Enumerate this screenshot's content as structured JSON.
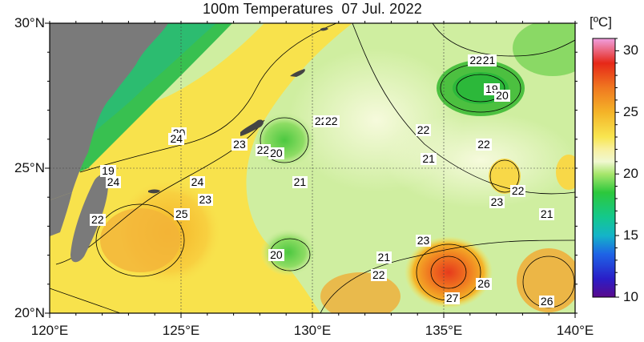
{
  "title": {
    "depth": "100m Temperatures",
    "date": "07 Jul. 2022"
  },
  "axes": {
    "lat_labels": [
      {
        "text": "30°N",
        "lat": 30
      },
      {
        "text": "25°N",
        "lat": 25
      },
      {
        "text": "20°N",
        "lat": 20
      }
    ],
    "lon_labels": [
      {
        "text": "120°E",
        "lon": 120
      },
      {
        "text": "125°E",
        "lon": 125
      },
      {
        "text": "130°E",
        "lon": 130
      },
      {
        "text": "135°E",
        "lon": 135
      },
      {
        "text": "140°E",
        "lon": 140
      }
    ],
    "lon_range": [
      120,
      140
    ],
    "lat_range": [
      20,
      30
    ],
    "gridlines": true
  },
  "colorbar": {
    "unit": "[ºC]",
    "range": [
      10,
      31
    ],
    "ticks": [
      "30",
      "25",
      "20",
      "15",
      "10"
    ],
    "tick_values": [
      30,
      25,
      20,
      15,
      10
    ],
    "stops": [
      {
        "v": 10,
        "color": "#5a0a8c"
      },
      {
        "v": 11.5,
        "color": "#2a1ec8"
      },
      {
        "v": 13.5,
        "color": "#1e64e6"
      },
      {
        "v": 15,
        "color": "#14b4c8"
      },
      {
        "v": 16.5,
        "color": "#14c88c"
      },
      {
        "v": 18.5,
        "color": "#2cc83c"
      },
      {
        "v": 20,
        "color": "#a8e66c"
      },
      {
        "v": 21,
        "color": "#f0f8d0"
      },
      {
        "v": 22,
        "color": "#f8f0a0"
      },
      {
        "v": 23,
        "color": "#f8e650"
      },
      {
        "v": 25,
        "color": "#f4b428"
      },
      {
        "v": 27,
        "color": "#f07820"
      },
      {
        "v": 29,
        "color": "#e62818"
      },
      {
        "v": 31,
        "color": "#f0a0e0"
      }
    ]
  },
  "colors": {
    "land": "#7a7a7a",
    "ocean_base": "#cfeea0"
  },
  "contour_labels": [
    {
      "text": "22",
      "lon": 136.2,
      "lat": 28.7
    },
    {
      "text": "21",
      "lon": 136.7,
      "lat": 28.7
    },
    {
      "text": "19",
      "lon": 136.8,
      "lat": 27.7
    },
    {
      "text": "20",
      "lon": 137.2,
      "lat": 27.5
    },
    {
      "text": "22",
      "lon": 130.3,
      "lat": 26.6
    },
    {
      "text": "22",
      "lon": 130.7,
      "lat": 26.6
    },
    {
      "text": "22",
      "lon": 134.2,
      "lat": 26.3
    },
    {
      "text": "22",
      "lon": 136.5,
      "lat": 25.8
    },
    {
      "text": "21",
      "lon": 134.4,
      "lat": 25.3
    },
    {
      "text": "20",
      "lon": 124.9,
      "lat": 26.2
    },
    {
      "text": "24",
      "lon": 124.8,
      "lat": 26.0
    },
    {
      "text": "23",
      "lon": 127.2,
      "lat": 25.8
    },
    {
      "text": "22",
      "lon": 128.1,
      "lat": 25.6
    },
    {
      "text": "20",
      "lon": 128.6,
      "lat": 25.5
    },
    {
      "text": "19",
      "lon": 122.2,
      "lat": 24.9
    },
    {
      "text": "24",
      "lon": 122.4,
      "lat": 24.5
    },
    {
      "text": "24",
      "lon": 125.6,
      "lat": 24.5
    },
    {
      "text": "21",
      "lon": 129.5,
      "lat": 24.5
    },
    {
      "text": "22",
      "lon": 137.8,
      "lat": 24.2
    },
    {
      "text": "23",
      "lon": 125.9,
      "lat": 23.9
    },
    {
      "text": "23",
      "lon": 137.0,
      "lat": 23.8
    },
    {
      "text": "25",
      "lon": 125.0,
      "lat": 23.4
    },
    {
      "text": "21",
      "lon": 138.9,
      "lat": 23.4
    },
    {
      "text": "22",
      "lon": 121.8,
      "lat": 23.2
    },
    {
      "text": "23",
      "lon": 134.2,
      "lat": 22.5
    },
    {
      "text": "21",
      "lon": 132.7,
      "lat": 21.9
    },
    {
      "text": "20",
      "lon": 128.6,
      "lat": 22.0
    },
    {
      "text": "22",
      "lon": 132.5,
      "lat": 21.3
    },
    {
      "text": "26",
      "lon": 136.5,
      "lat": 21.0
    },
    {
      "text": "27",
      "lon": 135.3,
      "lat": 20.5
    },
    {
      "text": "26",
      "lon": 138.9,
      "lat": 20.4
    }
  ]
}
